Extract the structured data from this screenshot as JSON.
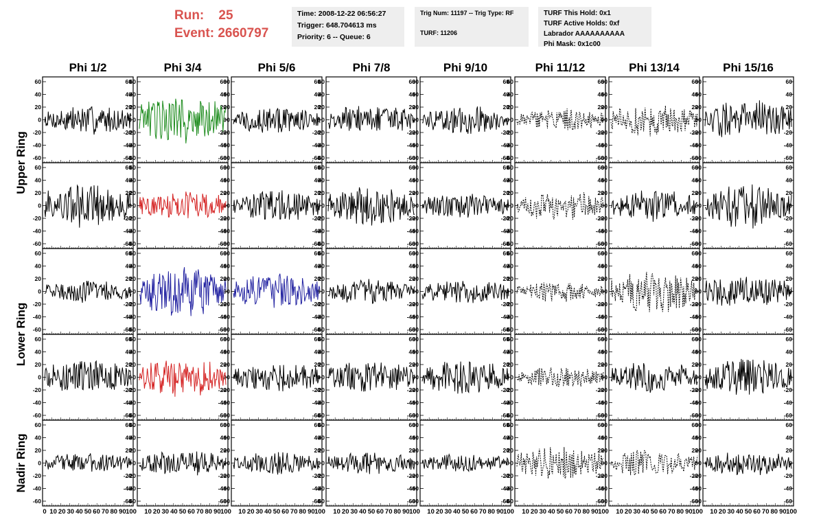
{
  "header": {
    "run_label": "Run:",
    "run_value": "25",
    "event_label": "Event:",
    "event_value": "2660797"
  },
  "info_boxes": {
    "time": "Time: 2008-12-22 06:56:27",
    "trigger": "Trigger: 648.704613 ms",
    "priority": "Priority: 6 -- Queue: 6",
    "trig_num": "Trig Num: 11197 -- Trig Type: RF",
    "turf": "TURF: 11206",
    "turf_this_hold": "TURF This Hold: 0x1",
    "turf_active_holds": "TURF Active Holds: 0xf",
    "labrador": "Labrador AAAAAAAAAA",
    "phi_mask": "Phi Mask: 0x1c00"
  },
  "chart_data": {
    "type": "line",
    "columns": [
      "Phi 1/2",
      "Phi 3/4",
      "Phi 5/6",
      "Phi 7/8",
      "Phi 9/10",
      "Phi 11/12",
      "Phi 13/14",
      "Phi 15/16"
    ],
    "ring_labels": [
      "Upper Ring",
      "Lower Ring",
      "Nadir Ring"
    ],
    "y_ticks": [
      -60,
      -40,
      -20,
      0,
      20,
      40,
      60
    ],
    "ylim": [
      -60,
      60
    ],
    "x_tick_labels_first": [
      "0",
      "10",
      "20",
      "30",
      "40",
      "50",
      "60",
      "70",
      "80",
      "90",
      "100"
    ],
    "x_tick_labels": [
      "10",
      "20",
      "30",
      "40",
      "50",
      "60",
      "70",
      "80",
      "90",
      "100"
    ],
    "xlim": [
      0,
      100
    ],
    "colors": {
      "default": "#000000",
      "green": "#1a8a1a",
      "red": "#d42020",
      "blue": "#2020a0"
    },
    "panels": [
      [
        {
          "style": "solid",
          "color": "default",
          "amp": 13
        },
        {
          "style": "solid",
          "color": "green",
          "amp": 22
        },
        {
          "style": "solid",
          "color": "default",
          "amp": 12
        },
        {
          "style": "solid",
          "color": "default",
          "amp": 13
        },
        {
          "style": "solid",
          "color": "default",
          "amp": 12
        },
        {
          "style": "dashed",
          "color": "default",
          "amp": 10
        },
        {
          "style": "dashed",
          "color": "default",
          "amp": 14
        },
        {
          "style": "solid",
          "color": "default",
          "amp": 18
        }
      ],
      [
        {
          "style": "solid",
          "color": "default",
          "amp": 20
        },
        {
          "style": "solid",
          "color": "red",
          "amp": 13
        },
        {
          "style": "solid",
          "color": "default",
          "amp": 14
        },
        {
          "style": "solid",
          "color": "default",
          "amp": 18
        },
        {
          "style": "solid",
          "color": "default",
          "amp": 11
        },
        {
          "style": "dashed",
          "color": "default",
          "amp": 13
        },
        {
          "style": "solid",
          "color": "default",
          "amp": 14
        },
        {
          "style": "solid",
          "color": "default",
          "amp": 20
        }
      ],
      [
        {
          "style": "solid",
          "color": "default",
          "amp": 10
        },
        {
          "style": "solid",
          "color": "blue",
          "amp": 22
        },
        {
          "style": "solid",
          "color": "blue",
          "amp": 15
        },
        {
          "style": "solid",
          "color": "default",
          "amp": 11
        },
        {
          "style": "solid",
          "color": "default",
          "amp": 11
        },
        {
          "style": "dashed",
          "color": "default",
          "amp": 9
        },
        {
          "style": "dashed",
          "color": "default",
          "amp": 20
        },
        {
          "style": "solid",
          "color": "default",
          "amp": 15
        }
      ],
      [
        {
          "style": "solid",
          "color": "default",
          "amp": 15
        },
        {
          "style": "solid",
          "color": "red",
          "amp": 17
        },
        {
          "style": "solid",
          "color": "default",
          "amp": 13
        },
        {
          "style": "solid",
          "color": "default",
          "amp": 14
        },
        {
          "style": "solid",
          "color": "default",
          "amp": 15
        },
        {
          "style": "dashed",
          "color": "default",
          "amp": 9
        },
        {
          "style": "solid",
          "color": "default",
          "amp": 14
        },
        {
          "style": "solid",
          "color": "default",
          "amp": 16
        }
      ],
      [
        {
          "style": "solid",
          "color": "default",
          "amp": 9
        },
        {
          "style": "solid",
          "color": "default",
          "amp": 11
        },
        {
          "style": "solid",
          "color": "default",
          "amp": 10
        },
        {
          "style": "solid",
          "color": "default",
          "amp": 10
        },
        {
          "style": "solid",
          "color": "default",
          "amp": 8
        },
        {
          "style": "dashed",
          "color": "default",
          "amp": 15
        },
        {
          "style": "dashed",
          "color": "default",
          "amp": 12
        },
        {
          "style": "solid",
          "color": "default",
          "amp": 11
        }
      ]
    ]
  }
}
